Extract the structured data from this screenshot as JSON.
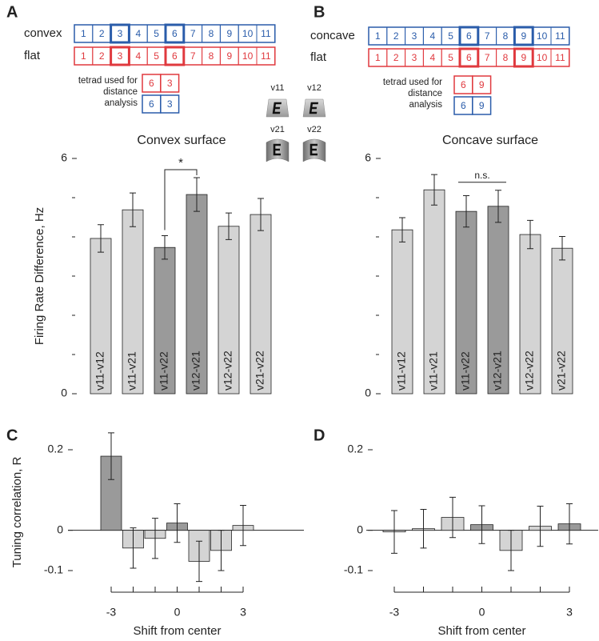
{
  "panel_labels": [
    "A",
    "B",
    "C",
    "D"
  ],
  "strips": [
    {
      "rows": [
        {
          "label": "convex",
          "color": "#2a5caa",
          "numbers": [
            1,
            2,
            3,
            4,
            5,
            6,
            7,
            8,
            9,
            10,
            11
          ],
          "highlight": [
            3,
            6
          ]
        },
        {
          "label": "flat",
          "color": "#e0393e",
          "numbers": [
            1,
            2,
            3,
            4,
            5,
            6,
            7,
            8,
            9,
            10,
            11
          ],
          "highlight": [
            3,
            6
          ]
        }
      ],
      "tetrad_label": [
        "tetrad used for",
        "distance",
        "analysis"
      ],
      "tetrad": [
        {
          "color": "#e0393e",
          "numbers": [
            6,
            3
          ]
        },
        {
          "color": "#2a5caa",
          "numbers": [
            6,
            3
          ]
        }
      ]
    },
    {
      "rows": [
        {
          "label": "concave",
          "color": "#2a5caa",
          "numbers": [
            1,
            2,
            3,
            4,
            5,
            6,
            7,
            8,
            9,
            10,
            11
          ],
          "highlight": [
            6,
            9
          ]
        },
        {
          "label": "flat",
          "color": "#e0393e",
          "numbers": [
            1,
            2,
            3,
            4,
            5,
            6,
            7,
            8,
            9,
            10,
            11
          ],
          "highlight": [
            6,
            9
          ]
        }
      ],
      "tetrad_label": [
        "tetrad used for",
        "distance",
        "analysis"
      ],
      "tetrad": [
        {
          "color": "#e0393e",
          "numbers": [
            6,
            9
          ]
        },
        {
          "color": "#2a5caa",
          "numbers": [
            6,
            9
          ]
        }
      ]
    }
  ],
  "views": [
    "v11",
    "v12",
    "v21",
    "v22"
  ],
  "chart_data": [
    {
      "type": "bar",
      "title": "Convex surface",
      "ylabel": "Firing Rate Difference, Hz",
      "categories": [
        "v11-v12",
        "v11-v21",
        "v11-v22",
        "v12-v21",
        "v12-v22",
        "v21-v22"
      ],
      "values": [
        3.96,
        4.69,
        3.73,
        5.08,
        4.27,
        4.57
      ],
      "errors": [
        0.35,
        0.43,
        0.3,
        0.43,
        0.34,
        0.41
      ],
      "colors": [
        "#d4d4d4",
        "#d4d4d4",
        "#9a9a9a",
        "#9a9a9a",
        "#d4d4d4",
        "#d4d4d4"
      ],
      "ylim": [
        0,
        6
      ],
      "yticks": [
        0,
        6
      ],
      "minor_yticks": [
        1,
        2,
        3,
        4,
        5
      ],
      "annotations": [
        {
          "text": "*",
          "between": [
            "v11-v22",
            "v12-v21"
          ],
          "style": "bracket"
        }
      ]
    },
    {
      "type": "bar",
      "title": "Concave surface",
      "categories": [
        "v11-v12",
        "v11-v21",
        "v11-v22",
        "v12-v21",
        "v12-v22",
        "v21-v22"
      ],
      "values": [
        4.18,
        5.2,
        4.65,
        4.78,
        4.06,
        3.71
      ],
      "errors": [
        0.31,
        0.39,
        0.4,
        0.41,
        0.36,
        0.3
      ],
      "colors": [
        "#d4d4d4",
        "#d4d4d4",
        "#9a9a9a",
        "#9a9a9a",
        "#d4d4d4",
        "#d4d4d4"
      ],
      "ylim": [
        0,
        6
      ],
      "yticks": [
        0,
        6
      ],
      "minor_yticks": [
        1,
        2,
        3,
        4,
        5
      ],
      "annotations": [
        {
          "text": "n.s.",
          "between": [
            "v11-v22",
            "v12-v21"
          ],
          "style": "line"
        }
      ]
    },
    {
      "type": "bar",
      "ylabel": "Tuning correlation, R",
      "xlabel": "Shift from center",
      "x": [
        -3,
        -2,
        -1,
        0,
        1,
        2,
        3
      ],
      "values": [
        0.184,
        -0.044,
        -0.02,
        0.018,
        -0.077,
        -0.05,
        0.012
      ],
      "errors": [
        0.058,
        0.05,
        0.05,
        0.048,
        0.05,
        0.05,
        0.05
      ],
      "colors": [
        "#9a9a9a",
        "#d4d4d4",
        "#d4d4d4",
        "#9a9a9a",
        "#d4d4d4",
        "#d4d4d4",
        "#d4d4d4"
      ],
      "xlim": [
        -3,
        3
      ],
      "xticks": [
        -3,
        0,
        3
      ],
      "minor_xticks": [
        -2,
        -1,
        1,
        2
      ],
      "ylim": [
        -0.1,
        0.2
      ],
      "yticks": [
        -0.1,
        0,
        0.2
      ]
    },
    {
      "type": "bar",
      "xlabel": "Shift from center",
      "x": [
        -3,
        -2,
        -1,
        0,
        1,
        2,
        3
      ],
      "values": [
        -0.004,
        0.004,
        0.032,
        0.014,
        -0.05,
        0.01,
        0.016
      ],
      "errors": [
        0.053,
        0.048,
        0.05,
        0.047,
        0.05,
        0.05,
        0.05
      ],
      "colors": [
        "#d4d4d4",
        "#d4d4d4",
        "#d4d4d4",
        "#9a9a9a",
        "#d4d4d4",
        "#d4d4d4",
        "#9a9a9a"
      ],
      "xlim": [
        -3,
        3
      ],
      "xticks": [
        -3,
        0,
        3
      ],
      "minor_xticks": [
        -2,
        -1,
        1,
        2
      ],
      "ylim": [
        -0.1,
        0.2
      ],
      "yticks": [
        -0.1,
        0,
        0.2
      ]
    }
  ]
}
